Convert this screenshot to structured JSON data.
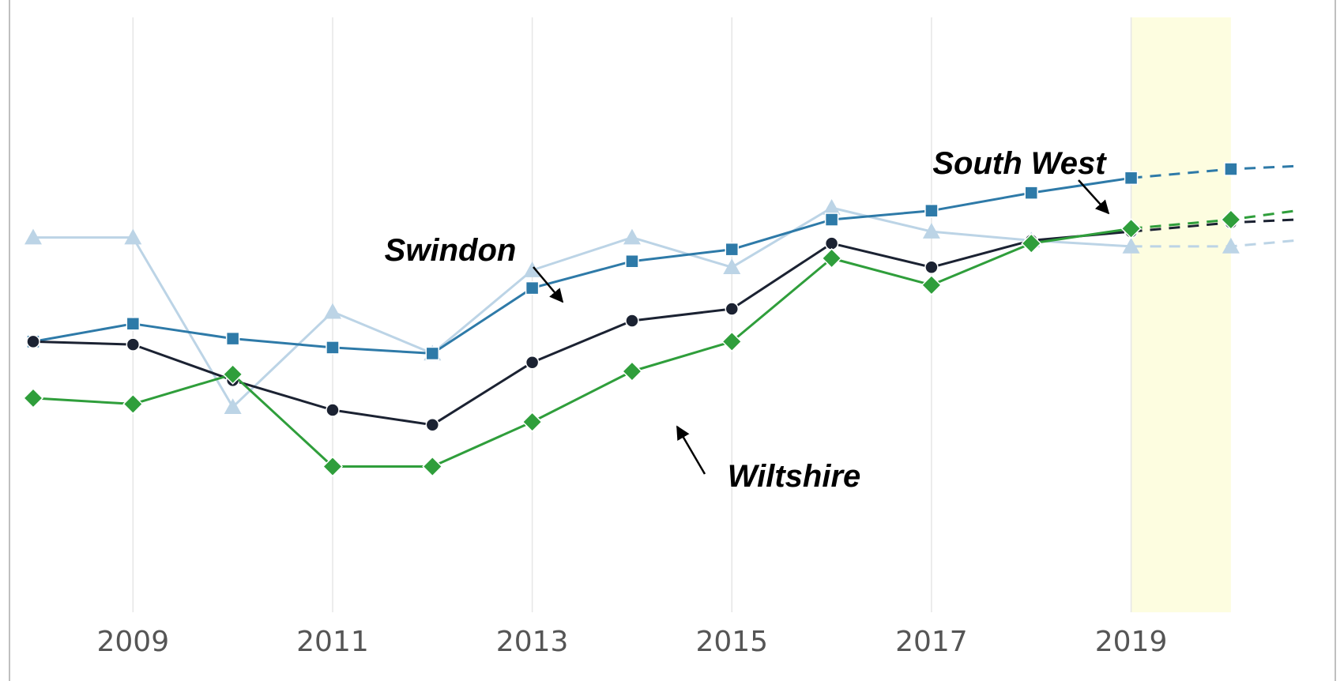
{
  "chart_data": {
    "type": "line",
    "x_ticks": [
      "2009",
      "2011",
      "2013",
      "2015",
      "2017",
      "2019"
    ],
    "xlim": [
      2008,
      2020.65
    ],
    "ylim": [
      0,
      100
    ],
    "grid": "vertical",
    "highlight_band": {
      "from": 2019,
      "to": 2020,
      "color": "#fdfde0"
    },
    "forecast_from": 2019,
    "series": [
      {
        "key": "light",
        "color": "#bcd4e6",
        "marker": "triangle",
        "x": [
          2008,
          2009,
          2010,
          2011,
          2012,
          2013,
          2014,
          2015,
          2016,
          2017,
          2018,
          2019,
          2020,
          2020.65
        ],
        "y": [
          63.0,
          63.0,
          34.5,
          50.5,
          43.5,
          57.5,
          63.0,
          58.0,
          68.0,
          64.0,
          62.5,
          61.5,
          61.5,
          62.5
        ]
      },
      {
        "key": "blue",
        "color": "#2e7aa8",
        "marker": "square",
        "x": [
          2008,
          2009,
          2010,
          2011,
          2012,
          2013,
          2014,
          2015,
          2016,
          2017,
          2018,
          2019,
          2020,
          2020.65
        ],
        "y": [
          45.5,
          48.5,
          46.0,
          44.5,
          43.5,
          54.5,
          59.0,
          61.0,
          66.0,
          67.5,
          70.5,
          73.0,
          74.5,
          75.0
        ]
      },
      {
        "key": "dark",
        "color": "#1b2232",
        "marker": "circle",
        "x": [
          2008,
          2009,
          2010,
          2011,
          2012,
          2013,
          2014,
          2015,
          2016,
          2017,
          2018,
          2019,
          2020,
          2020.65
        ],
        "y": [
          45.5,
          45.0,
          39.0,
          34.0,
          31.5,
          42.0,
          49.0,
          51.0,
          62.0,
          58.0,
          62.5,
          64.0,
          65.5,
          66.0
        ]
      },
      {
        "key": "green",
        "color": "#2f9e3b",
        "marker": "diamond",
        "x": [
          2008,
          2009,
          2010,
          2011,
          2012,
          2013,
          2014,
          2015,
          2016,
          2017,
          2018,
          2019,
          2020,
          2020.65
        ],
        "y": [
          36.0,
          35.0,
          40.0,
          24.5,
          24.5,
          32.0,
          40.5,
          45.5,
          59.5,
          55.0,
          62.0,
          64.5,
          66.0,
          67.5
        ]
      }
    ],
    "annotations": [
      {
        "key": "south_west",
        "text": "South West",
        "target_series": "blue"
      },
      {
        "key": "swindon",
        "text": "Swindon",
        "target_series": "light"
      },
      {
        "key": "wiltshire",
        "text": "Wiltshire",
        "target_series": "green"
      }
    ]
  }
}
